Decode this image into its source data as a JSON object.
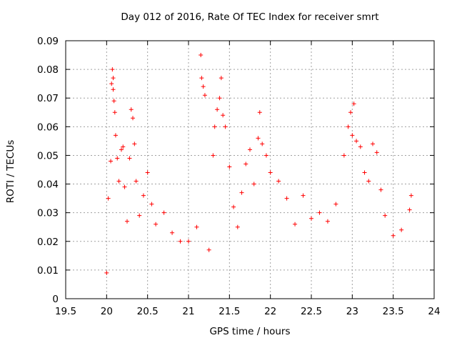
{
  "chart_data": {
    "type": "scatter",
    "title": "Day 012 of 2016, Rate Of TEC Index for receiver smrt",
    "xlabel": "GPS time / hours",
    "ylabel": "ROTI / TECUs",
    "xlim": [
      19.5,
      24
    ],
    "ylim": [
      0,
      0.09
    ],
    "xticks": [
      "19.5",
      "20",
      "20.5",
      "21",
      "21.5",
      "22",
      "22.5",
      "23",
      "23.5",
      "24"
    ],
    "yticks": [
      "0",
      "0.01",
      "0.02",
      "0.03",
      "0.04",
      "0.05",
      "0.06",
      "0.07",
      "0.08",
      "0.09"
    ],
    "grid": true,
    "legend": "none",
    "marker": "plus",
    "color": "#ff0000",
    "series": [
      {
        "x": [
          20.0,
          20.02,
          20.05,
          20.06,
          20.07,
          20.08,
          20.08,
          20.09,
          20.1,
          20.11,
          20.13,
          20.15,
          20.18,
          20.2,
          20.22,
          20.25,
          20.28,
          20.3,
          20.32,
          20.34,
          20.36,
          20.4,
          20.45,
          20.5,
          20.55,
          20.6,
          20.7,
          20.8,
          20.9,
          21.0,
          21.1,
          21.15,
          21.16,
          21.18,
          21.2,
          21.25,
          21.3,
          21.32,
          21.35,
          21.38,
          21.4,
          21.42,
          21.45,
          21.5,
          21.55,
          21.6,
          21.65,
          21.7,
          21.75,
          21.8,
          21.85,
          21.87,
          21.9,
          21.95,
          22.0,
          22.1,
          22.2,
          22.3,
          22.4,
          22.5,
          22.6,
          22.7,
          22.8,
          22.9,
          22.95,
          22.98,
          23.0,
          23.02,
          23.05,
          23.1,
          23.15,
          23.2,
          23.25,
          23.3,
          23.35,
          23.4,
          23.5,
          23.6,
          23.7,
          23.72
        ],
        "y": [
          0.009,
          0.035,
          0.048,
          0.075,
          0.08,
          0.077,
          0.073,
          0.069,
          0.065,
          0.057,
          0.049,
          0.041,
          0.052,
          0.053,
          0.039,
          0.027,
          0.049,
          0.066,
          0.063,
          0.054,
          0.041,
          0.029,
          0.036,
          0.044,
          0.033,
          0.026,
          0.03,
          0.023,
          0.02,
          0.02,
          0.025,
          0.085,
          0.077,
          0.074,
          0.071,
          0.017,
          0.05,
          0.06,
          0.066,
          0.07,
          0.077,
          0.064,
          0.06,
          0.046,
          0.032,
          0.025,
          0.037,
          0.047,
          0.052,
          0.04,
          0.056,
          0.065,
          0.054,
          0.05,
          0.044,
          0.041,
          0.035,
          0.026,
          0.036,
          0.028,
          0.03,
          0.027,
          0.033,
          0.05,
          0.06,
          0.065,
          0.057,
          0.068,
          0.055,
          0.053,
          0.044,
          0.041,
          0.054,
          0.051,
          0.038,
          0.029,
          0.022,
          0.024,
          0.031,
          0.036
        ]
      }
    ]
  }
}
